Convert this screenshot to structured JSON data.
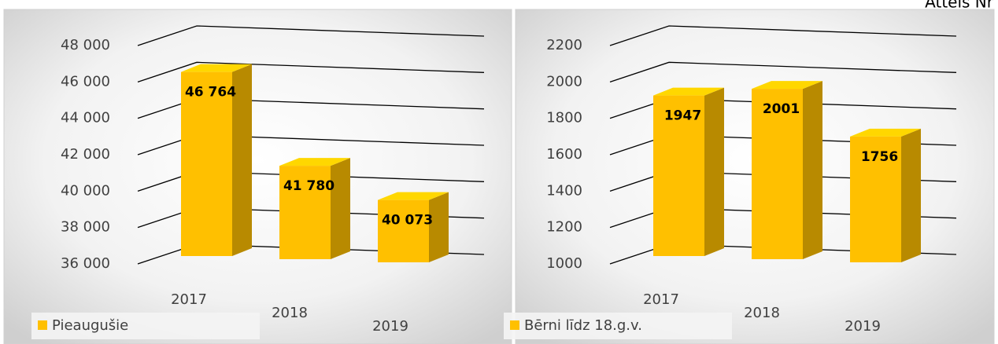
{
  "caption": "Attēls Nr",
  "chart_data": [
    {
      "type": "bar3d",
      "categories": [
        "2017",
        "2018",
        "2019"
      ],
      "series": [
        {
          "name": "Pieaugušie",
          "color": "#ffc000",
          "values": [
            46764,
            41780,
            40073
          ],
          "value_labels": [
            "46 764",
            "41 780",
            "40 073"
          ]
        }
      ],
      "ylim": [
        36000,
        48000
      ],
      "yticks": [
        {
          "value": 36000,
          "label": "36 000"
        },
        {
          "value": 38000,
          "label": "38 000"
        },
        {
          "value": 40000,
          "label": "40 000"
        },
        {
          "value": 42000,
          "label": "42 000"
        },
        {
          "value": 44000,
          "label": "44 000"
        },
        {
          "value": 46000,
          "label": "46 000"
        },
        {
          "value": 48000,
          "label": "48 000"
        }
      ],
      "grid": true,
      "legend": "bottom-left"
    },
    {
      "type": "bar3d",
      "categories": [
        "2017",
        "2018",
        "2019"
      ],
      "series": [
        {
          "name": "Bērni līdz 18.g.v.",
          "color": "#ffc000",
          "values": [
            1947,
            2001,
            1756
          ]
        }
      ],
      "ylim": [
        1000,
        2200
      ],
      "yticks": [
        1000,
        1200,
        1400,
        1600,
        1800,
        2000,
        2200
      ],
      "grid": true,
      "legend": "bottom-left"
    }
  ]
}
